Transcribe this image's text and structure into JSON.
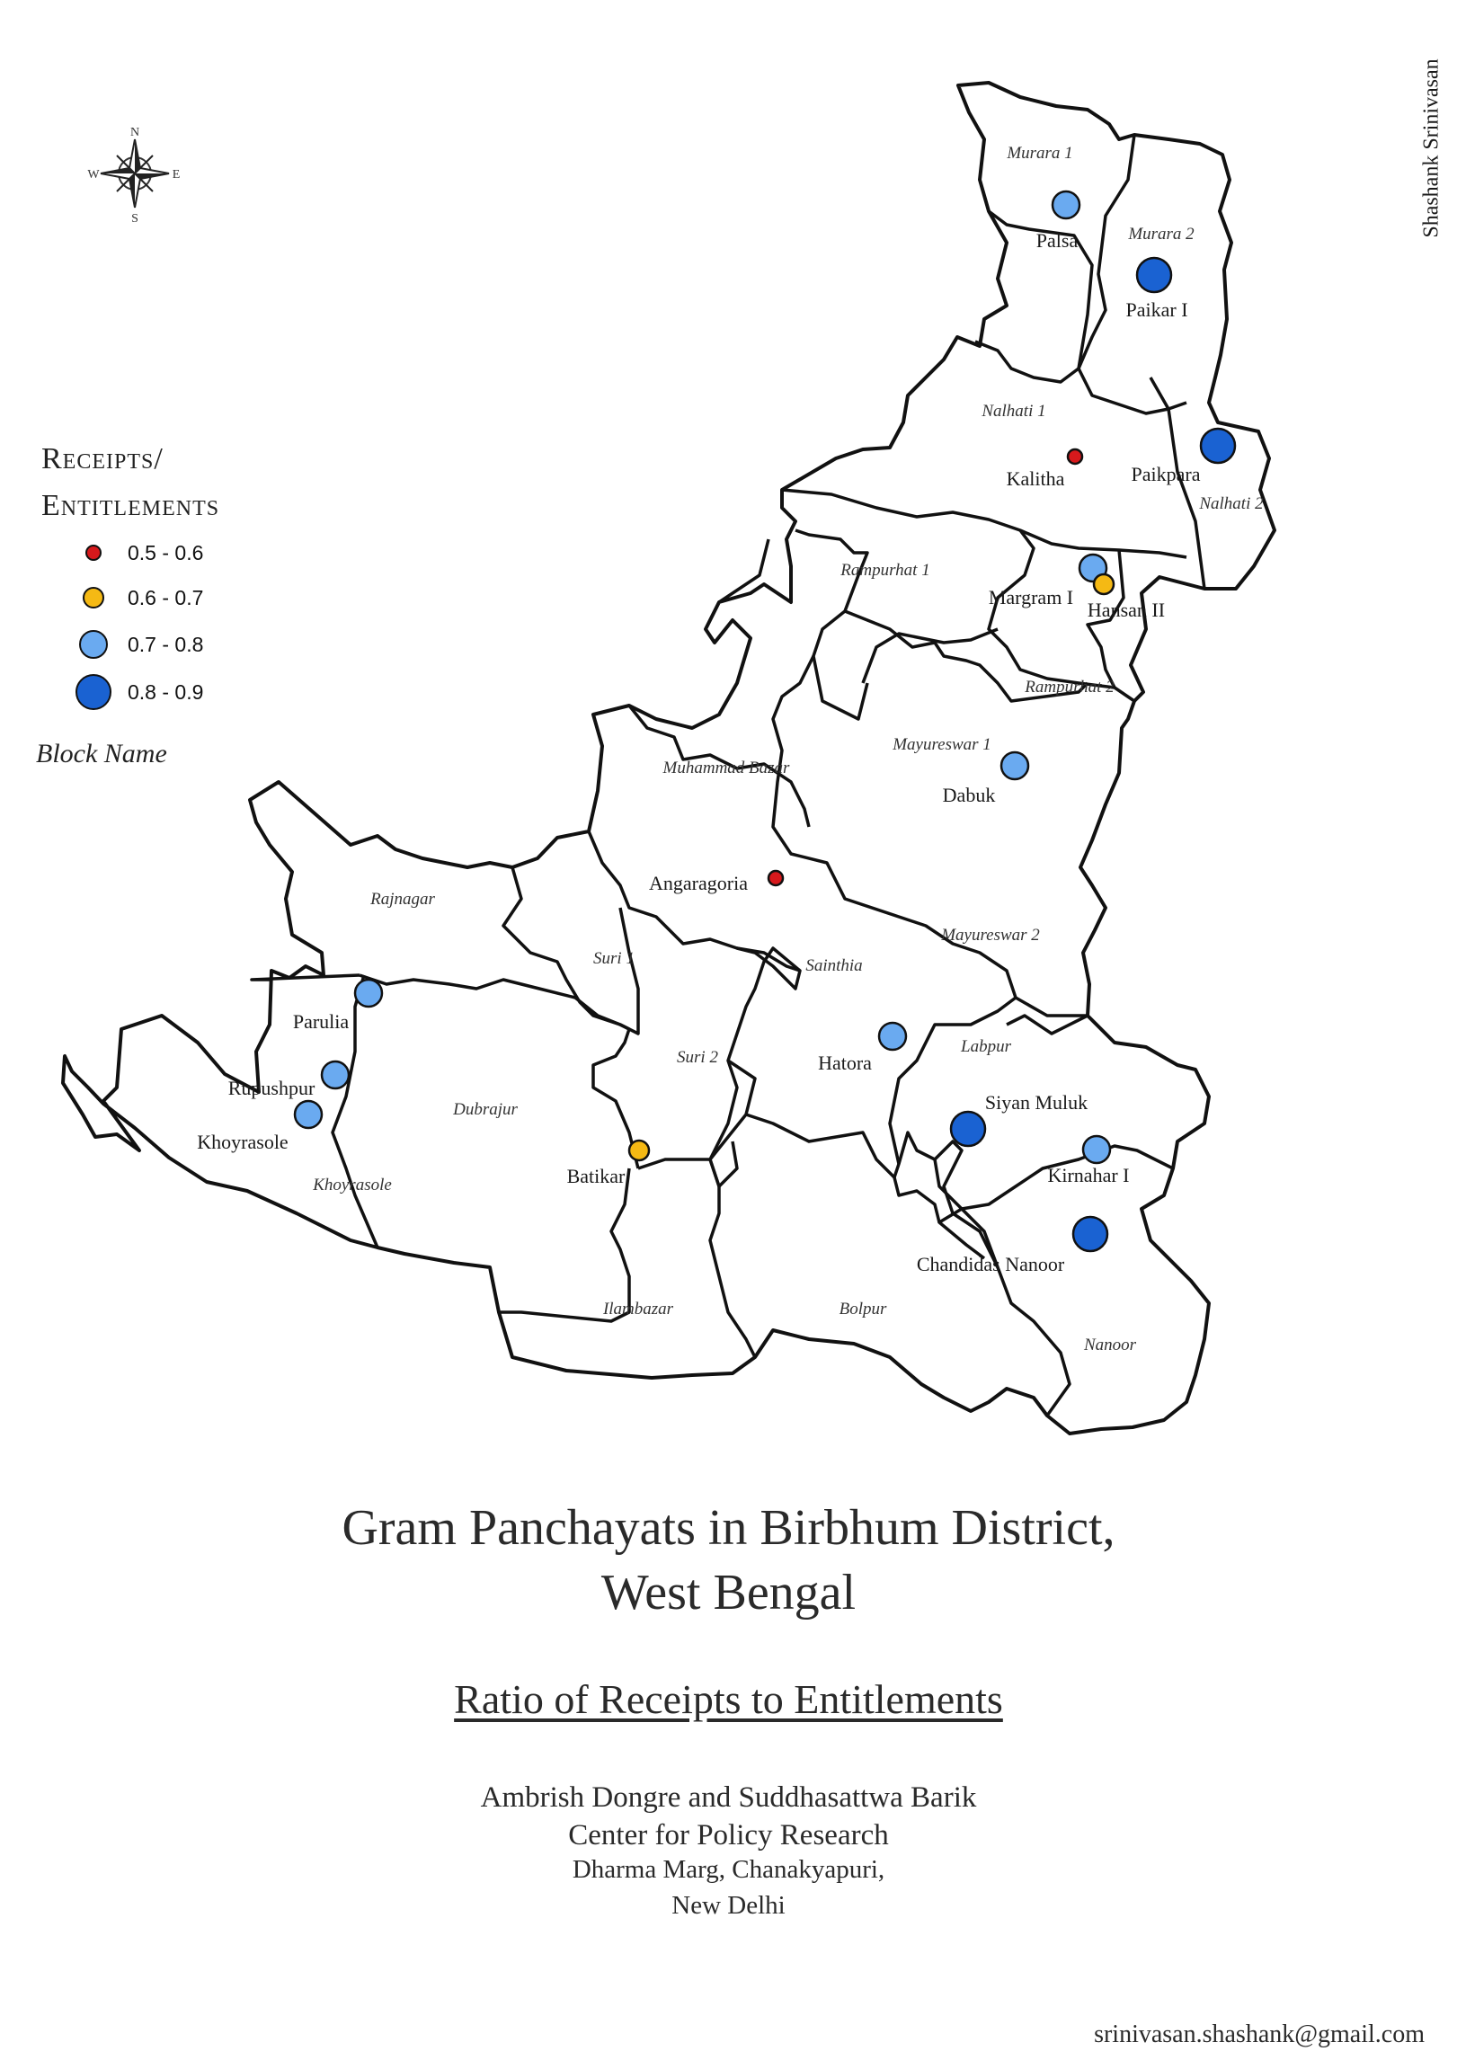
{
  "credit": "Shashank Srinivasan",
  "compass": {
    "n": "N",
    "s": "S",
    "e": "E",
    "w": "W"
  },
  "legend": {
    "title_line1": "Receipts/",
    "title_line2": "Entitlements",
    "classes": [
      {
        "label": "0.5 - 0.6",
        "color": "#d7191c"
      },
      {
        "label": "0.6 - 0.7",
        "color": "#f5b914"
      },
      {
        "label": "0.7 - 0.8",
        "color": "#6aaaf0"
      },
      {
        "label": "0.8 - 0.9",
        "color": "#1a62d2"
      }
    ],
    "block_name": "Block Name"
  },
  "blocks": [
    "Murara 1",
    "Murara 2",
    "Nalhati 1",
    "Nalhati 2",
    "Rampurhat 1",
    "Rampurhat 2",
    "Muhammad Bazar",
    "Mayureswar 1",
    "Rajnagar",
    "Suri 1",
    "Sainthia",
    "Mayureswar 2",
    "Suri 2",
    "Labpur",
    "Dubrajur",
    "Khoyrasole",
    "Ilambazar",
    "Bolpur",
    "Nanoor"
  ],
  "gram_panchayats": [
    {
      "name": "Palsa",
      "ratio_class": "0.7 - 0.8"
    },
    {
      "name": "Paikar I",
      "ratio_class": "0.8 - 0.9"
    },
    {
      "name": "Kalitha",
      "ratio_class": "0.5 - 0.6"
    },
    {
      "name": "Paikpara",
      "ratio_class": "0.8 - 0.9"
    },
    {
      "name": "Margram I",
      "ratio_class": "0.7 - 0.8"
    },
    {
      "name": "Hansan II",
      "ratio_class": "0.6 - 0.7"
    },
    {
      "name": "Dabuk",
      "ratio_class": "0.7 - 0.8"
    },
    {
      "name": "Angaragoria",
      "ratio_class": "0.5 - 0.6"
    },
    {
      "name": "Parulia",
      "ratio_class": "0.7 - 0.8"
    },
    {
      "name": "Rupushpur",
      "ratio_class": "0.7 - 0.8"
    },
    {
      "name": "Khoyrasole",
      "ratio_class": "0.7 - 0.8"
    },
    {
      "name": "Hatora",
      "ratio_class": "0.7 - 0.8"
    },
    {
      "name": "Siyan Muluk",
      "ratio_class": "0.8 - 0.9"
    },
    {
      "name": "Kirnahar I",
      "ratio_class": "0.7 - 0.8"
    },
    {
      "name": "Chandidas Nanoor",
      "ratio_class": "0.8 - 0.9"
    },
    {
      "name": "Batikar",
      "ratio_class": "0.6 - 0.7"
    }
  ],
  "title_line1": "Gram Panchayats in Birbhum District,",
  "title_line2": "West Bengal",
  "subtitle": "Ratio of Receipts to Entitlements",
  "authors": "Ambrish Dongre and Suddhasattwa Barik",
  "org": "Center for Policy Research",
  "address1": "Dharma Marg, Chanakyapuri,",
  "address2": "New Delhi",
  "email": "srinivasan.shashank@gmail.com"
}
